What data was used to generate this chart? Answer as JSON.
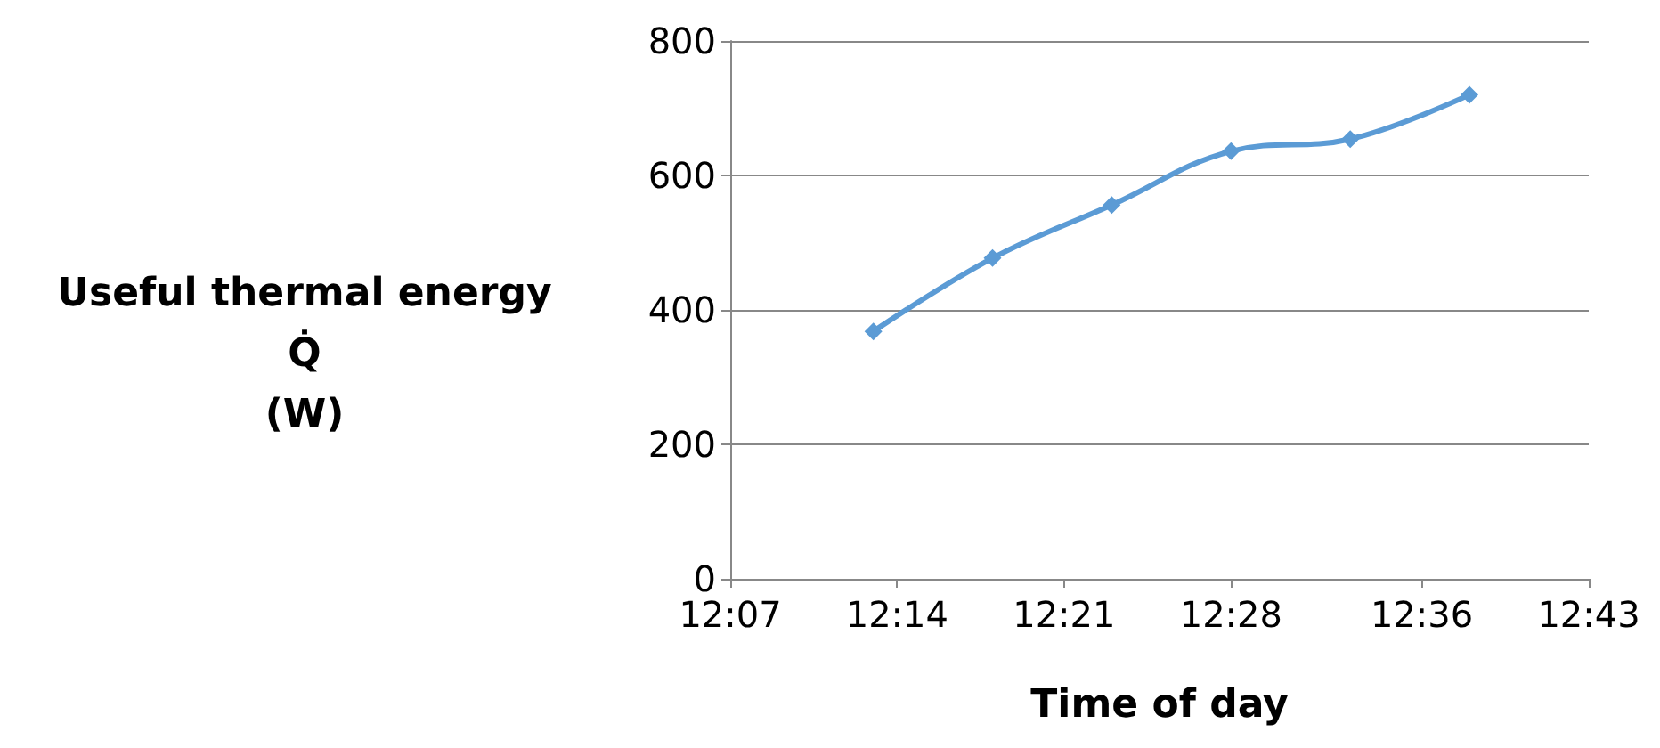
{
  "chart_data": {
    "type": "line",
    "xlabel": "Time of day",
    "ylabel": "Useful thermal energy\nQ̇\n(W)",
    "x": [
      12.2167,
      12.3,
      12.3833,
      12.4667,
      12.55,
      12.6333
    ],
    "series": [
      {
        "color": "#5b9bd5",
        "values": [
          368,
          477,
          556,
          636,
          654,
          720
        ]
      }
    ],
    "xlim": [
      12.1167,
      12.7167
    ],
    "xticks": [
      {
        "value": 12.1167,
        "label": "12:07"
      },
      {
        "value": 12.2333,
        "label": "12:14"
      },
      {
        "value": 12.35,
        "label": "12:21"
      },
      {
        "value": 12.4667,
        "label": "12:28"
      },
      {
        "value": 12.6,
        "label": "12:36"
      },
      {
        "value": 12.7167,
        "label": "12:43"
      }
    ],
    "ylim": [
      0,
      800
    ],
    "yticks": [
      0,
      200,
      400,
      600,
      800
    ],
    "grid": "y",
    "marker": "diamond",
    "line_style": "solid"
  }
}
